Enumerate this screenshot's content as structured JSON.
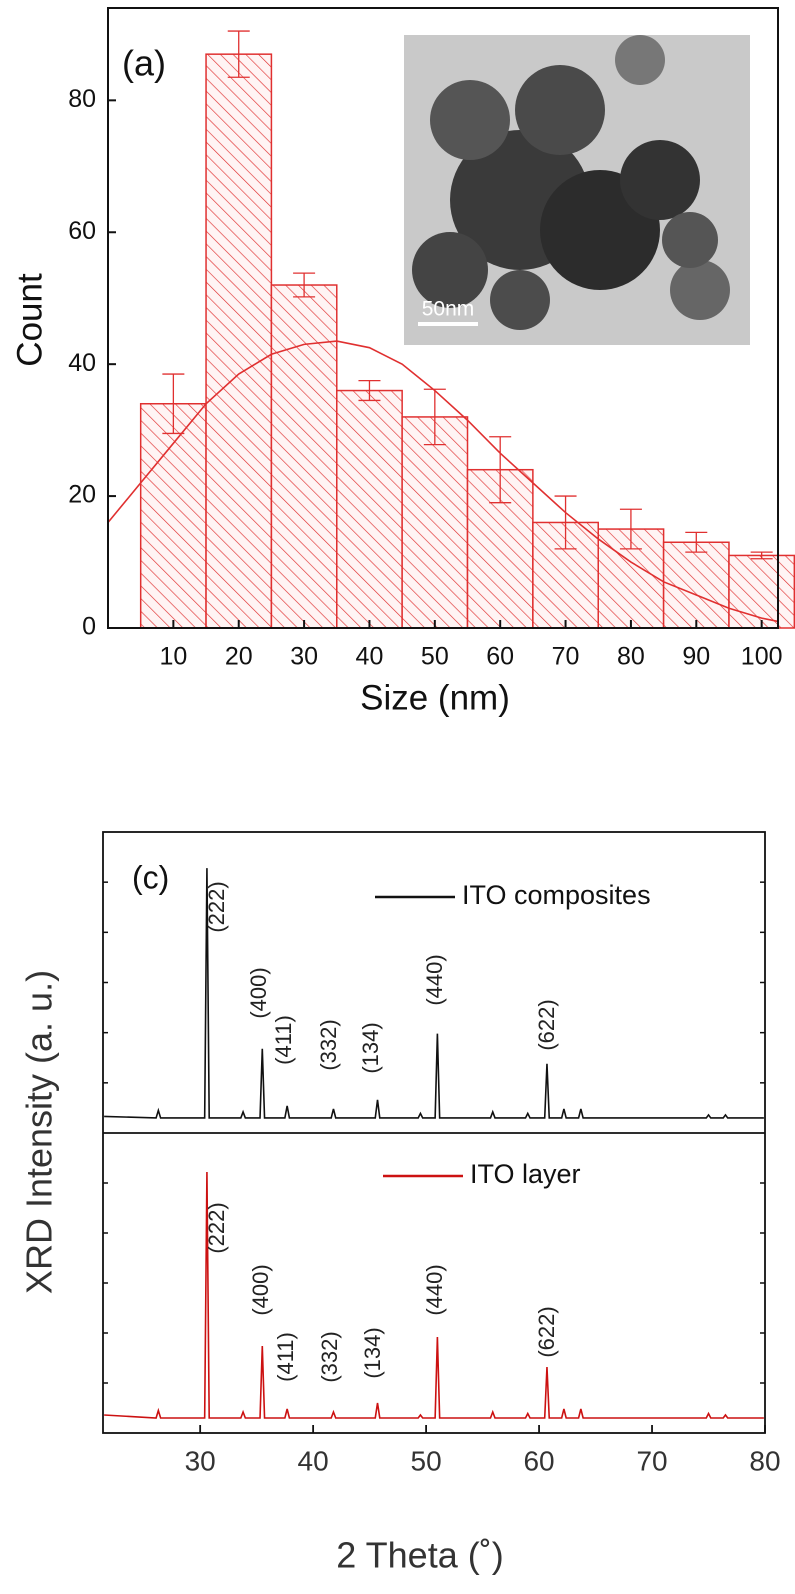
{
  "chart_data": [
    {
      "type": "bar",
      "panel_label": "(a)",
      "x_label": "Size (nm)",
      "y_label": "Count",
      "x": [
        10,
        20,
        30,
        40,
        50,
        60,
        70,
        80,
        90,
        100
      ],
      "values": [
        34,
        87,
        52,
        36,
        32,
        24,
        16,
        15,
        13,
        11
      ],
      "errors": [
        4.5,
        3.5,
        1.8,
        1.5,
        4.2,
        5,
        4,
        3,
        1.5,
        0.5
      ],
      "color": "#e03030",
      "fit": {
        "x": [
          0,
          5,
          10,
          15,
          20,
          25,
          30,
          35,
          40,
          45,
          50,
          55,
          60,
          65,
          70,
          75,
          80,
          85,
          90,
          95,
          100,
          102.5
        ],
        "values": [
          16,
          22,
          28,
          34,
          38.5,
          41.5,
          43,
          43.5,
          42.5,
          40,
          36,
          31.5,
          26.5,
          22,
          17.5,
          13.5,
          10,
          7,
          5,
          3,
          1.5,
          1
        ]
      },
      "xlim": [
        0,
        102.5
      ],
      "ylim": [
        0,
        94
      ],
      "xticks": [
        10,
        20,
        30,
        40,
        50,
        60,
        70,
        80,
        90,
        100
      ],
      "yticks": [
        0,
        20,
        40,
        60,
        80
      ],
      "inset_scale_label": "50nm"
    },
    {
      "type": "line",
      "panel_label": "(c)",
      "x_label": "2 Theta (˚)",
      "y_label": "XRD Intensity (a. u.)",
      "xlim": [
        21.4,
        80
      ],
      "ylim": [
        0,
        100
      ],
      "xticks": [
        30,
        40,
        50,
        60,
        70,
        80
      ],
      "legend": "upper right",
      "series": [
        {
          "name": "ITO composites",
          "color": "#111111",
          "x": [
            21.5,
            26.1,
            26.3,
            26.5,
            30.4,
            30.6,
            30.8,
            33.6,
            33.8,
            34.0,
            35.3,
            35.5,
            35.7,
            37.5,
            37.7,
            37.9,
            41.6,
            41.8,
            42.0,
            45.5,
            45.7,
            45.9,
            49.3,
            49.5,
            49.7,
            50.8,
            51.0,
            51.2,
            55.7,
            55.9,
            56.1,
            58.8,
            59.0,
            59.2,
            60.5,
            60.7,
            60.9,
            62.0,
            62.2,
            62.4,
            63.5,
            63.7,
            63.9,
            74.8,
            75.0,
            75.2,
            76.3,
            76.5,
            76.7,
            79.9
          ],
          "values": [
            5.5,
            5,
            7.5,
            5,
            5,
            88,
            5,
            5,
            7,
            5,
            5,
            28,
            5,
            5,
            9,
            5,
            5,
            8,
            5,
            5,
            11,
            5,
            5,
            6.5,
            5,
            5,
            33,
            5,
            5,
            7,
            5,
            5,
            6.5,
            5,
            5,
            23,
            5,
            5,
            8,
            5,
            5,
            8,
            5,
            5,
            6,
            5,
            5,
            6,
            5,
            5
          ],
          "peak_labels": [
            "(222)",
            "(400)",
            "(411)",
            "(332)",
            "(134)",
            "(440)",
            "(622)"
          ]
        },
        {
          "name": "ITO layer",
          "color": "#cc1111",
          "x": [
            21.5,
            26.1,
            26.3,
            26.5,
            30.4,
            30.6,
            30.8,
            33.6,
            33.8,
            34.0,
            35.3,
            35.5,
            35.7,
            37.5,
            37.7,
            37.9,
            41.6,
            41.8,
            42.0,
            45.5,
            45.7,
            45.9,
            49.3,
            49.5,
            49.7,
            50.8,
            51.0,
            51.2,
            55.7,
            55.9,
            56.1,
            58.8,
            59.0,
            59.2,
            60.5,
            60.7,
            60.9,
            62.0,
            62.2,
            62.4,
            63.5,
            63.7,
            63.9,
            74.8,
            75.0,
            75.2,
            76.3,
            76.5,
            76.7,
            79.9
          ],
          "values": [
            6,
            5,
            7.5,
            5,
            5,
            87,
            5,
            5,
            7,
            5,
            5,
            29,
            5,
            5,
            8,
            5,
            5,
            7,
            5,
            5,
            10,
            5,
            5,
            6,
            5,
            5,
            32,
            5,
            5,
            7,
            5,
            5,
            6.5,
            5,
            5,
            22,
            5,
            5,
            8,
            5,
            5,
            8,
            5,
            5,
            6.5,
            5,
            5,
            6,
            5,
            5
          ],
          "peak_labels": [
            "(222)",
            "(400)",
            "(411)",
            "(332)",
            "(134)",
            "(440)",
            "(622)"
          ]
        }
      ]
    }
  ]
}
